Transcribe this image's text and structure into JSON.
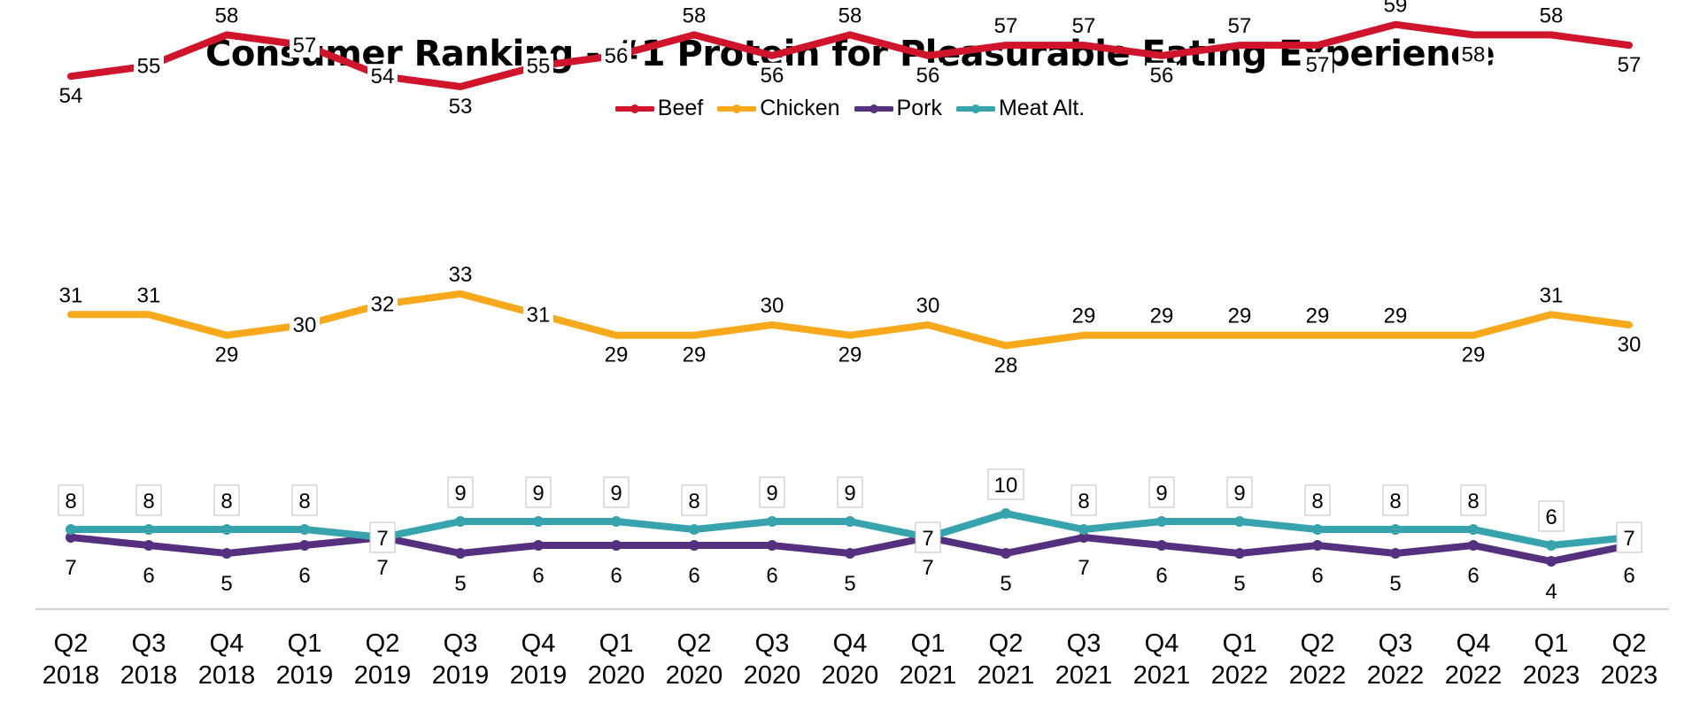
{
  "chart_data": {
    "type": "line",
    "title": "Consumer Ranking - #1 Protein for Pleasurable Eating Experience",
    "xlabel": "",
    "ylabel": "",
    "categories": [
      [
        "Q2",
        "2018"
      ],
      [
        "Q3",
        "2018"
      ],
      [
        "Q4",
        "2018"
      ],
      [
        "Q1",
        "2019"
      ],
      [
        "Q2",
        "2019"
      ],
      [
        "Q3",
        "2019"
      ],
      [
        "Q4",
        "2019"
      ],
      [
        "Q1",
        "2020"
      ],
      [
        "Q2",
        "2020"
      ],
      [
        "Q3",
        "2020"
      ],
      [
        "Q4",
        "2020"
      ],
      [
        "Q1",
        "2021"
      ],
      [
        "Q2",
        "2021"
      ],
      [
        "Q3",
        "2021"
      ],
      [
        "Q4",
        "2021"
      ],
      [
        "Q1",
        "2022"
      ],
      [
        "Q2",
        "2022"
      ],
      [
        "Q3",
        "2022"
      ],
      [
        "Q4",
        "2022"
      ],
      [
        "Q1",
        "2023"
      ],
      [
        "Q2",
        "2023"
      ]
    ],
    "series": [
      {
        "name": "Beef",
        "color": "#d0142c",
        "markers": false,
        "label_pos": "auto",
        "values": [
          54,
          55,
          58,
          57,
          54,
          53,
          55,
          56,
          58,
          56,
          58,
          56,
          57,
          57,
          56,
          57,
          57,
          59,
          58,
          58,
          57
        ]
      },
      {
        "name": "Chicken",
        "color": "#f7a81b",
        "markers": false,
        "label_pos": "auto",
        "values": [
          31,
          31,
          29,
          30,
          32,
          33,
          31,
          29,
          29,
          30,
          29,
          30,
          28,
          29,
          29,
          29,
          29,
          29,
          29,
          31,
          30
        ]
      },
      {
        "name": "Pork",
        "color": "#54307e",
        "markers": true,
        "label_pos": "below",
        "values": [
          7,
          6,
          5,
          6,
          7,
          5,
          6,
          6,
          6,
          6,
          5,
          7,
          5,
          7,
          6,
          5,
          6,
          5,
          6,
          4,
          6
        ]
      },
      {
        "name": "Meat Alt.",
        "color": "#37a3ad",
        "markers": true,
        "label_pos": "above-box",
        "values": [
          8,
          8,
          8,
          8,
          7,
          9,
          9,
          9,
          8,
          9,
          9,
          7,
          10,
          8,
          9,
          9,
          8,
          8,
          8,
          6,
          7
        ]
      }
    ],
    "legend": "top-center",
    "grid": false
  }
}
